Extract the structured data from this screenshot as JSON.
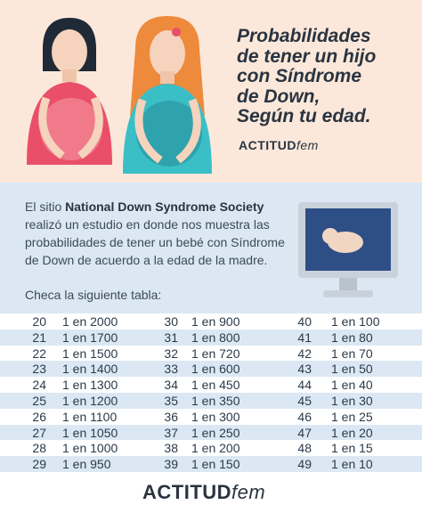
{
  "header": {
    "title_lines": [
      "Probabilidades",
      "de tener un hijo",
      "con Síndrome",
      "de Down,",
      "Según tu edad."
    ],
    "brand": {
      "bold": "ACTITUD",
      "light": "fem"
    }
  },
  "intro": {
    "before": "El sitio ",
    "bold": "National Down Syndrome Society",
    "after": " realizó un estudio en donde nos muestra las probabilidades de tener un bebé con Síndrome de Down de acuerdo a la edad de la madre."
  },
  "table_caption": "Checa la siguiente tabla:",
  "table": {
    "rows": [
      [
        20,
        "1 en 2000",
        30,
        "1 en 900",
        40,
        "1 en 100"
      ],
      [
        21,
        "1 en 1700",
        31,
        "1 en 800",
        41,
        "1 en 80"
      ],
      [
        22,
        "1 en 1500",
        32,
        "1 en 720",
        42,
        "1 en 70"
      ],
      [
        23,
        "1 en 1400",
        33,
        "1 en 600",
        43,
        "1 en 50"
      ],
      [
        24,
        "1 en 1300",
        34,
        "1 en 450",
        44,
        "1 en 40"
      ],
      [
        25,
        "1 en 1200",
        35,
        "1 en 350",
        45,
        "1 en 30"
      ],
      [
        26,
        "1 en 1100",
        36,
        "1 en 300",
        46,
        "1 en 25"
      ],
      [
        27,
        "1 en 1050",
        37,
        "1 en 250",
        47,
        "1 en 20"
      ],
      [
        28,
        "1 en 1000",
        38,
        "1 en 200",
        48,
        "1 en 15"
      ],
      [
        29,
        "1 en 950",
        39,
        "1 en 150",
        49,
        "1 en 10"
      ]
    ]
  },
  "footer": {
    "brand": {
      "bold": "ACTITUD",
      "light": "fem"
    }
  }
}
